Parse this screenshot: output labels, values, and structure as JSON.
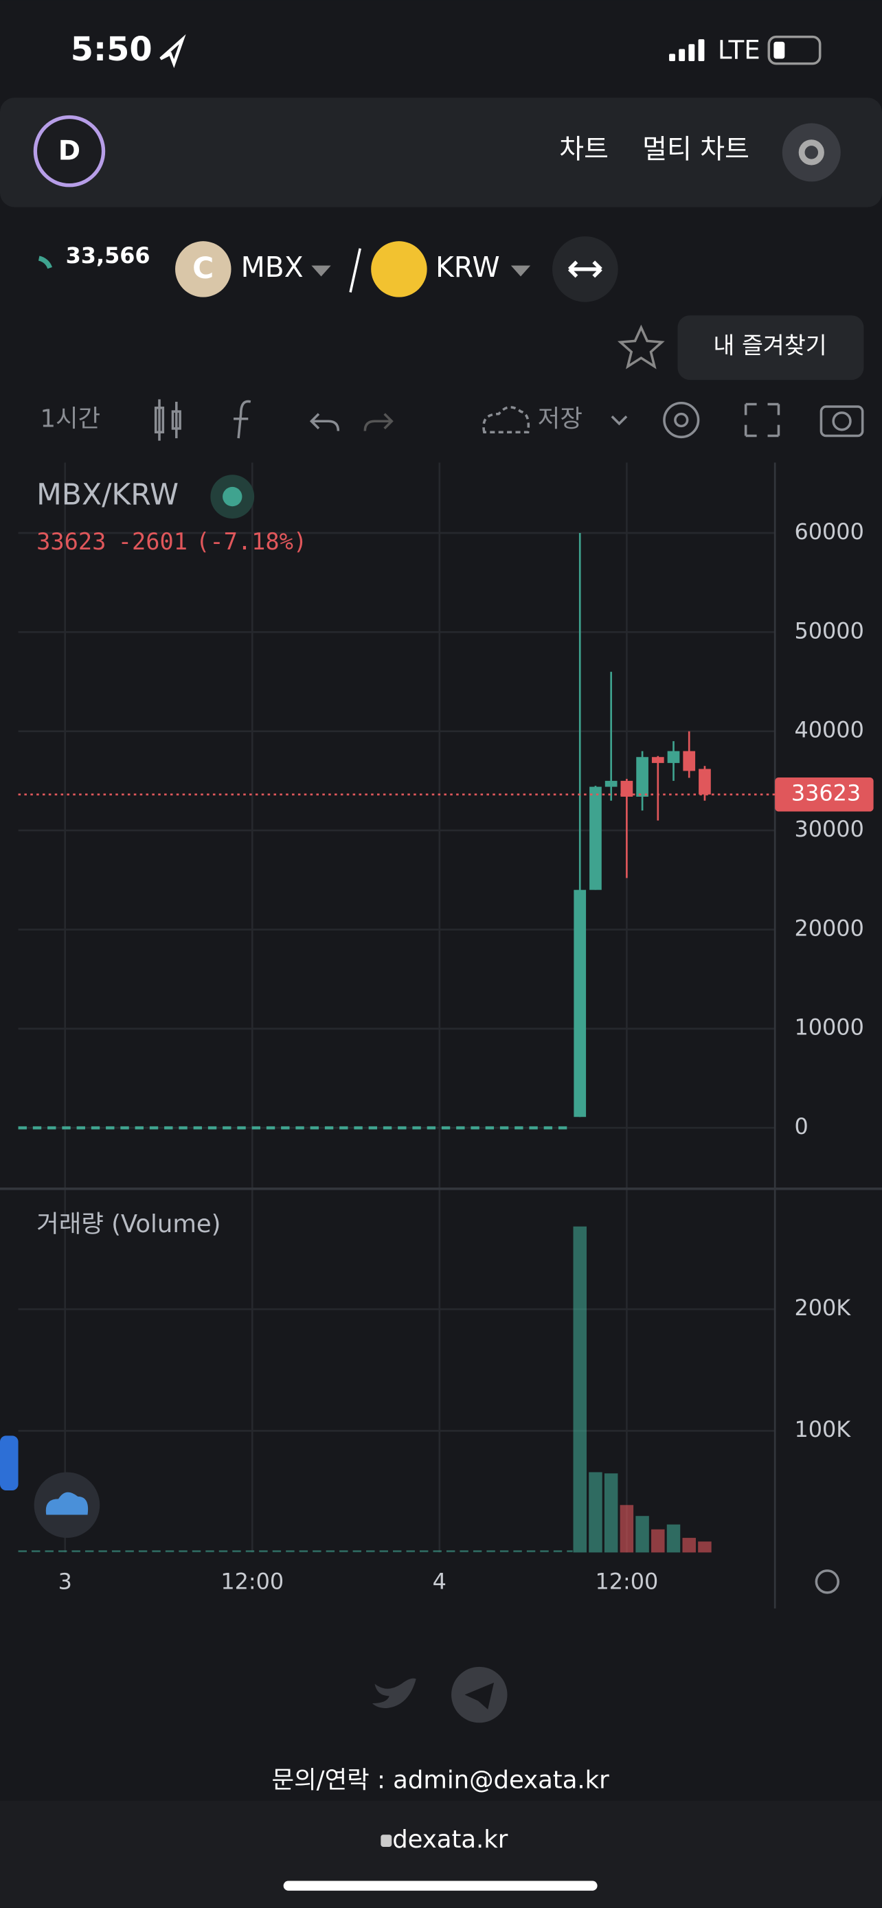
{
  "status_bar": {
    "time": "5:50",
    "network": "LTE"
  },
  "header": {
    "nav": [
      "차트",
      "멀티 차트"
    ]
  },
  "pair": {
    "price": "33,566",
    "base": "MBX",
    "quote": "KRW"
  },
  "favorites": "내 즐겨찾기",
  "toolbar": {
    "interval": "1시간",
    "save": "저장"
  },
  "chart": {
    "type": "candlestick",
    "title": "MBX/KRW",
    "last": 33623,
    "change": -2601,
    "change_pct": "(-7.18%)",
    "x": [
      33,
      34,
      35,
      36,
      37,
      38,
      39,
      40,
      41
    ],
    "open": [
      1100,
      24000,
      34400,
      35000,
      33400,
      37400,
      36800,
      38000,
      36200
    ],
    "high": [
      60000,
      34500,
      46000,
      35200,
      38000,
      37500,
      39000,
      40000,
      36500
    ],
    "low": [
      1100,
      24000,
      33000,
      25200,
      32000,
      31000,
      35000,
      35300,
      33000
    ],
    "close": [
      24000,
      34400,
      35000,
      33400,
      37400,
      36800,
      38000,
      36000,
      33623
    ],
    "up_color": "#3fa38f",
    "down_color": "#e0575b",
    "xlim": [
      -3,
      45.5
    ],
    "xticks": [
      {
        "value": 0,
        "label": "3"
      },
      {
        "value": 12,
        "label": "12:00"
      },
      {
        "value": 24,
        "label": "4"
      },
      {
        "value": 36,
        "label": "12:00"
      }
    ],
    "ylim": [
      -5900,
      67100
    ],
    "yticks": [
      0,
      10000,
      20000,
      30000,
      40000,
      50000,
      60000
    ],
    "volume": {
      "title": "거래량 (Volume)",
      "values": [
        268000,
        66000,
        65000,
        39000,
        30000,
        19000,
        23000,
        12000,
        9000
      ],
      "ylim": [
        0,
        298000
      ],
      "yticks": [
        {
          "value": 100000,
          "label": "100K"
        },
        {
          "value": 200000,
          "label": "200K"
        }
      ]
    }
  },
  "footer": {
    "contact": "문의/연락 : admin@dexata.kr",
    "url": "dexata.kr"
  }
}
